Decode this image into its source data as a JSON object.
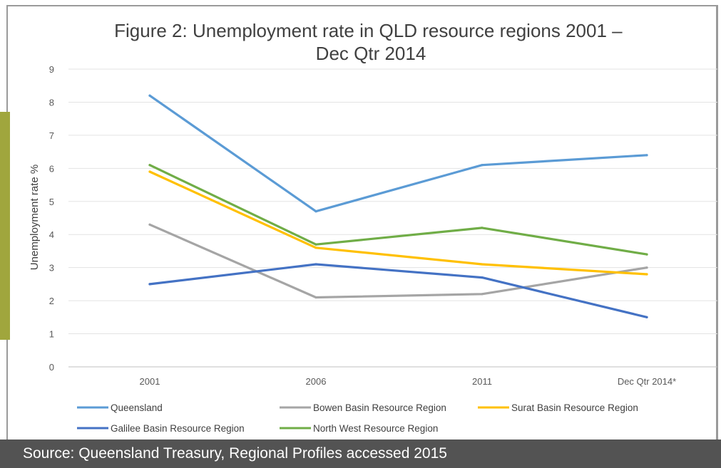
{
  "source_text": "Source: Queensland Treasury, Regional Profiles accessed 2015",
  "chart_data": {
    "type": "line",
    "title_lines": [
      "Figure 2: Unemployment rate in QLD resource regions 2001 –",
      "Dec Qtr 2014"
    ],
    "xlabel": "",
    "ylabel": "Unemployment rate %",
    "categories": [
      "2001",
      "2006",
      "2011",
      "Dec Qtr 2014*"
    ],
    "ylim": [
      0,
      9
    ],
    "yticks": [
      "0",
      "1",
      "2",
      "3",
      "4",
      "5",
      "6",
      "7",
      "8",
      "9"
    ],
    "grid": true,
    "legend_position": "bottom",
    "series": [
      {
        "name": "Queensland",
        "values": [
          8.2,
          4.7,
          6.1,
          6.4
        ],
        "color": "#5b9bd5"
      },
      {
        "name": "Bowen Basin Resource Region",
        "values": [
          4.3,
          2.1,
          2.2,
          3.0
        ],
        "color": "#a5a5a5"
      },
      {
        "name": "Surat Basin Resource Region",
        "values": [
          5.9,
          3.6,
          3.1,
          2.8
        ],
        "color": "#ffc000"
      },
      {
        "name": "Galilee Basin Resource Region",
        "values": [
          2.5,
          3.1,
          2.7,
          1.5
        ],
        "color": "#4472c4"
      },
      {
        "name": "North West Resource Region",
        "values": [
          6.1,
          3.7,
          4.2,
          3.4
        ],
        "color": "#70ad47"
      }
    ]
  }
}
